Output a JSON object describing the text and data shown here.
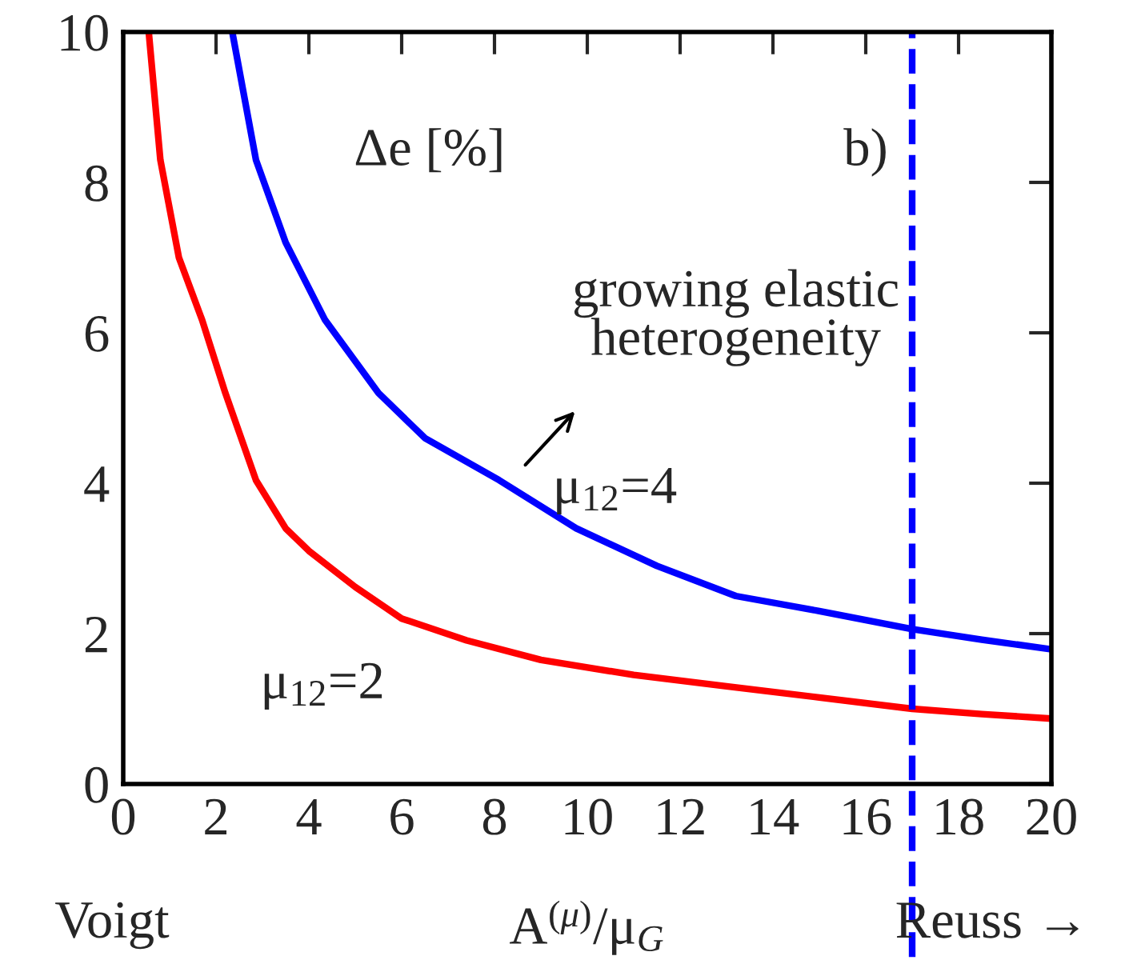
{
  "chart_data": {
    "type": "line",
    "xlabel": "A$^{(μ)}$/μ$_{G}$",
    "xlim": [
      0,
      20
    ],
    "xticks": [
      0,
      2,
      4,
      6,
      8,
      10,
      12,
      14,
      16,
      18,
      20
    ],
    "ylim": [
      0,
      10
    ],
    "yticks": [
      0,
      2,
      4,
      6,
      8,
      10
    ],
    "grid": false,
    "legend": false,
    "marker": "none",
    "line_style": "solid",
    "series": [
      {
        "name": "μ$_{12}$=2",
        "color": "#ff0000",
        "x": [
          0.55,
          0.8,
          1.2,
          1.7,
          2.2,
          2.86,
          3.5,
          4,
          5,
          6,
          7.4,
          9,
          11,
          13,
          15,
          17,
          18.5,
          20
        ],
        "values": [
          10,
          8.3,
          7,
          6.17,
          5.2,
          4.04,
          3.4,
          3.1,
          2.62,
          2.2,
          1.91,
          1.65,
          1.45,
          1.3,
          1.15,
          1.0,
          0.93,
          0.87
        ]
      },
      {
        "name": "μ$_{12}$=4",
        "color": "#0000ff",
        "x": [
          2.35,
          2.86,
          3.5,
          4.35,
          5.5,
          6.5,
          8.1,
          9.76,
          11.5,
          13.2,
          15,
          17,
          18.5,
          20
        ],
        "values": [
          10,
          8.3,
          7.2,
          6.17,
          5.2,
          4.6,
          4.04,
          3.4,
          2.9,
          2.5,
          2.3,
          2.06,
          1.92,
          1.79
        ]
      }
    ],
    "ref_lines": [
      {
        "axis": "x",
        "value": 17,
        "color": "#0000ff",
        "line_style": "dashed"
      }
    ],
    "annotations": [
      "Δe [%]",
      "b)",
      "growing elastic\nheterogeneity",
      "Voigt",
      "Reuss →"
    ]
  }
}
